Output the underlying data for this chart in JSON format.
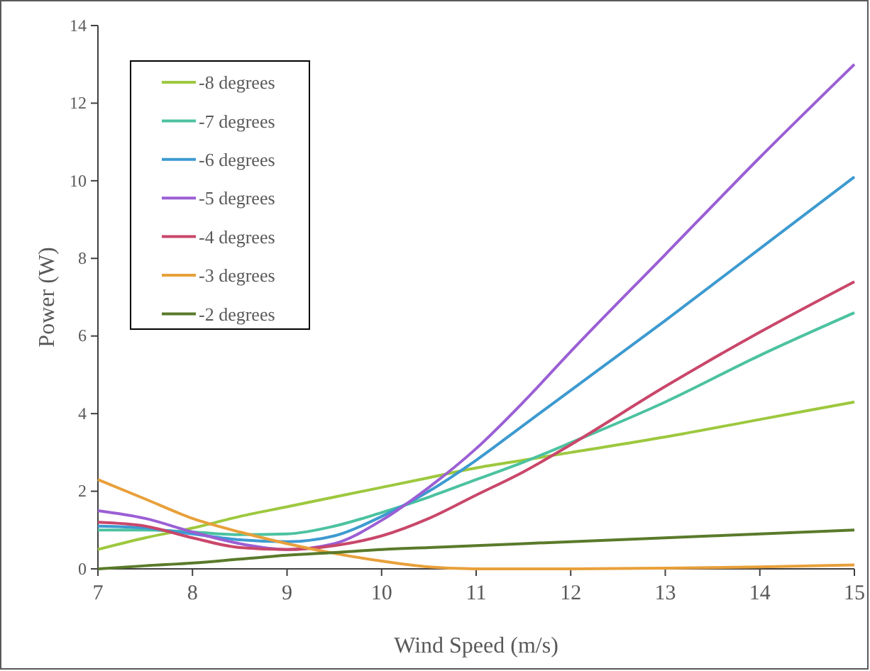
{
  "chart_data": {
    "type": "line",
    "xlabel": "Wind Speed (m/s)",
    "ylabel": "Power (W)",
    "x": [
      7,
      7.5,
      8,
      8.5,
      9,
      9.5,
      10,
      10.5,
      11,
      11.5,
      12,
      13,
      14,
      15
    ],
    "xlim": [
      7,
      15
    ],
    "xticks": [
      7,
      8,
      9,
      10,
      11,
      12,
      13,
      14,
      15
    ],
    "ylim": [
      0,
      14
    ],
    "yticks": [
      0,
      2,
      4,
      6,
      8,
      10,
      12,
      14
    ],
    "grid": false,
    "legend": "top left",
    "marker": "none",
    "line_style": "solid",
    "series": [
      {
        "name": "-8 degrees",
        "color": "#9dc83e",
        "values": [
          0.5,
          0.8,
          1.05,
          1.35,
          1.6,
          1.85,
          2.1,
          2.35,
          2.6,
          2.8,
          3.0,
          3.4,
          3.85,
          4.3
        ]
      },
      {
        "name": "-7 degrees",
        "color": "#4cc2a0",
        "values": [
          1.0,
          1.0,
          0.95,
          0.88,
          0.9,
          1.1,
          1.45,
          1.85,
          2.3,
          2.75,
          3.25,
          4.3,
          5.5,
          6.6
        ]
      },
      {
        "name": "-6 degrees",
        "color": "#3d9ad0",
        "values": [
          1.1,
          1.05,
          0.9,
          0.75,
          0.7,
          0.85,
          1.35,
          2.0,
          2.8,
          3.7,
          4.6,
          6.4,
          8.25,
          10.1
        ]
      },
      {
        "name": "-5 degrees",
        "color": "#9b5fd4",
        "values": [
          1.5,
          1.3,
          0.95,
          0.65,
          0.5,
          0.65,
          1.25,
          2.1,
          3.1,
          4.3,
          5.6,
          8.1,
          10.6,
          13.0
        ]
      },
      {
        "name": "-4 degrees",
        "color": "#c9476a",
        "values": [
          1.2,
          1.1,
          0.8,
          0.55,
          0.5,
          0.6,
          0.85,
          1.3,
          1.9,
          2.5,
          3.2,
          4.7,
          6.1,
          7.4
        ]
      },
      {
        "name": "-3 degrees",
        "color": "#e8a03a",
        "values": [
          2.3,
          1.8,
          1.3,
          0.95,
          0.65,
          0.4,
          0.2,
          0.05,
          0,
          0,
          0,
          0.02,
          0.05,
          0.1
        ]
      },
      {
        "name": "-2 degrees",
        "color": "#5a7a2a",
        "values": [
          0,
          0.08,
          0.15,
          0.25,
          0.35,
          0.42,
          0.5,
          0.55,
          0.6,
          0.65,
          0.7,
          0.8,
          0.9,
          1.0
        ]
      }
    ]
  }
}
